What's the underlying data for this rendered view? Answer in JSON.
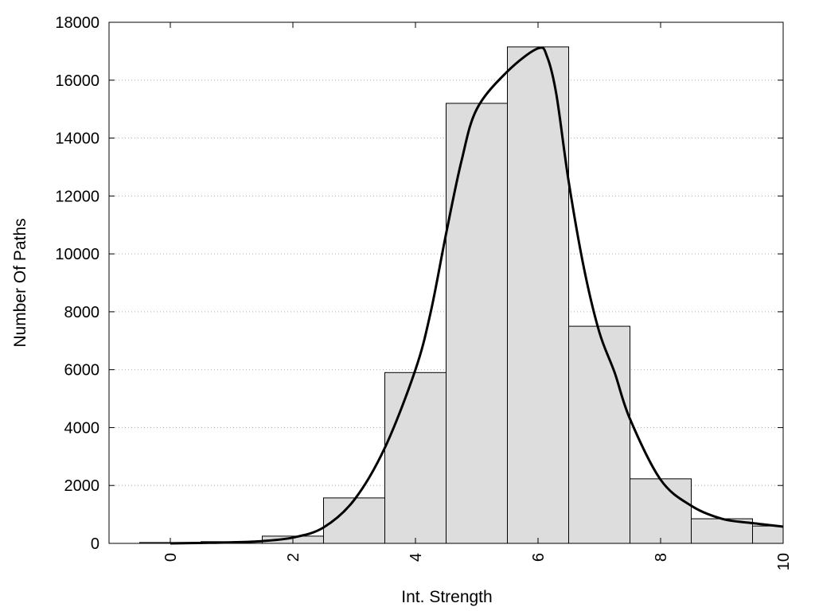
{
  "chart_data": {
    "type": "bar",
    "title": "",
    "xlabel": "Int. Strength",
    "ylabel": "Number Of Paths",
    "xlim": [
      -1,
      10
    ],
    "ylim": [
      0,
      18000
    ],
    "x_ticks": [
      0,
      2,
      4,
      6,
      8,
      10
    ],
    "y_ticks": [
      0,
      2000,
      4000,
      6000,
      8000,
      10000,
      12000,
      14000,
      16000,
      18000
    ],
    "grid": "horizontal-dotted",
    "bar_color": "#dddddd",
    "bar_edge_color": "#000000",
    "line_color": "#000000",
    "bars": [
      {
        "x": 0,
        "value": 30
      },
      {
        "x": 1,
        "value": 60
      },
      {
        "x": 2,
        "value": 250
      },
      {
        "x": 3,
        "value": 1570
      },
      {
        "x": 4,
        "value": 5900
      },
      {
        "x": 5,
        "value": 15200
      },
      {
        "x": 6,
        "value": 17150
      },
      {
        "x": 7,
        "value": 7500
      },
      {
        "x": 8,
        "value": 2230
      },
      {
        "x": 9,
        "value": 850
      },
      {
        "x": 10,
        "value": 600
      }
    ],
    "density_curve": [
      [
        0,
        0
      ],
      [
        0.5,
        15
      ],
      [
        1,
        35
      ],
      [
        1.5,
        80
      ],
      [
        2,
        200
      ],
      [
        2.5,
        550
      ],
      [
        3,
        1500
      ],
      [
        3.5,
        3300
      ],
      [
        4,
        6000
      ],
      [
        4.25,
        8000
      ],
      [
        4.5,
        10700
      ],
      [
        4.75,
        13200
      ],
      [
        5,
        15000
      ],
      [
        5.5,
        16300
      ],
      [
        6,
        17100
      ],
      [
        6.15,
        16800
      ],
      [
        6.3,
        15500
      ],
      [
        6.5,
        12500
      ],
      [
        6.75,
        9500
      ],
      [
        7,
        7300
      ],
      [
        7.25,
        5900
      ],
      [
        7.5,
        4300
      ],
      [
        8,
        2200
      ],
      [
        8.5,
        1300
      ],
      [
        9,
        850
      ],
      [
        9.5,
        700
      ],
      [
        10,
        580
      ]
    ]
  }
}
